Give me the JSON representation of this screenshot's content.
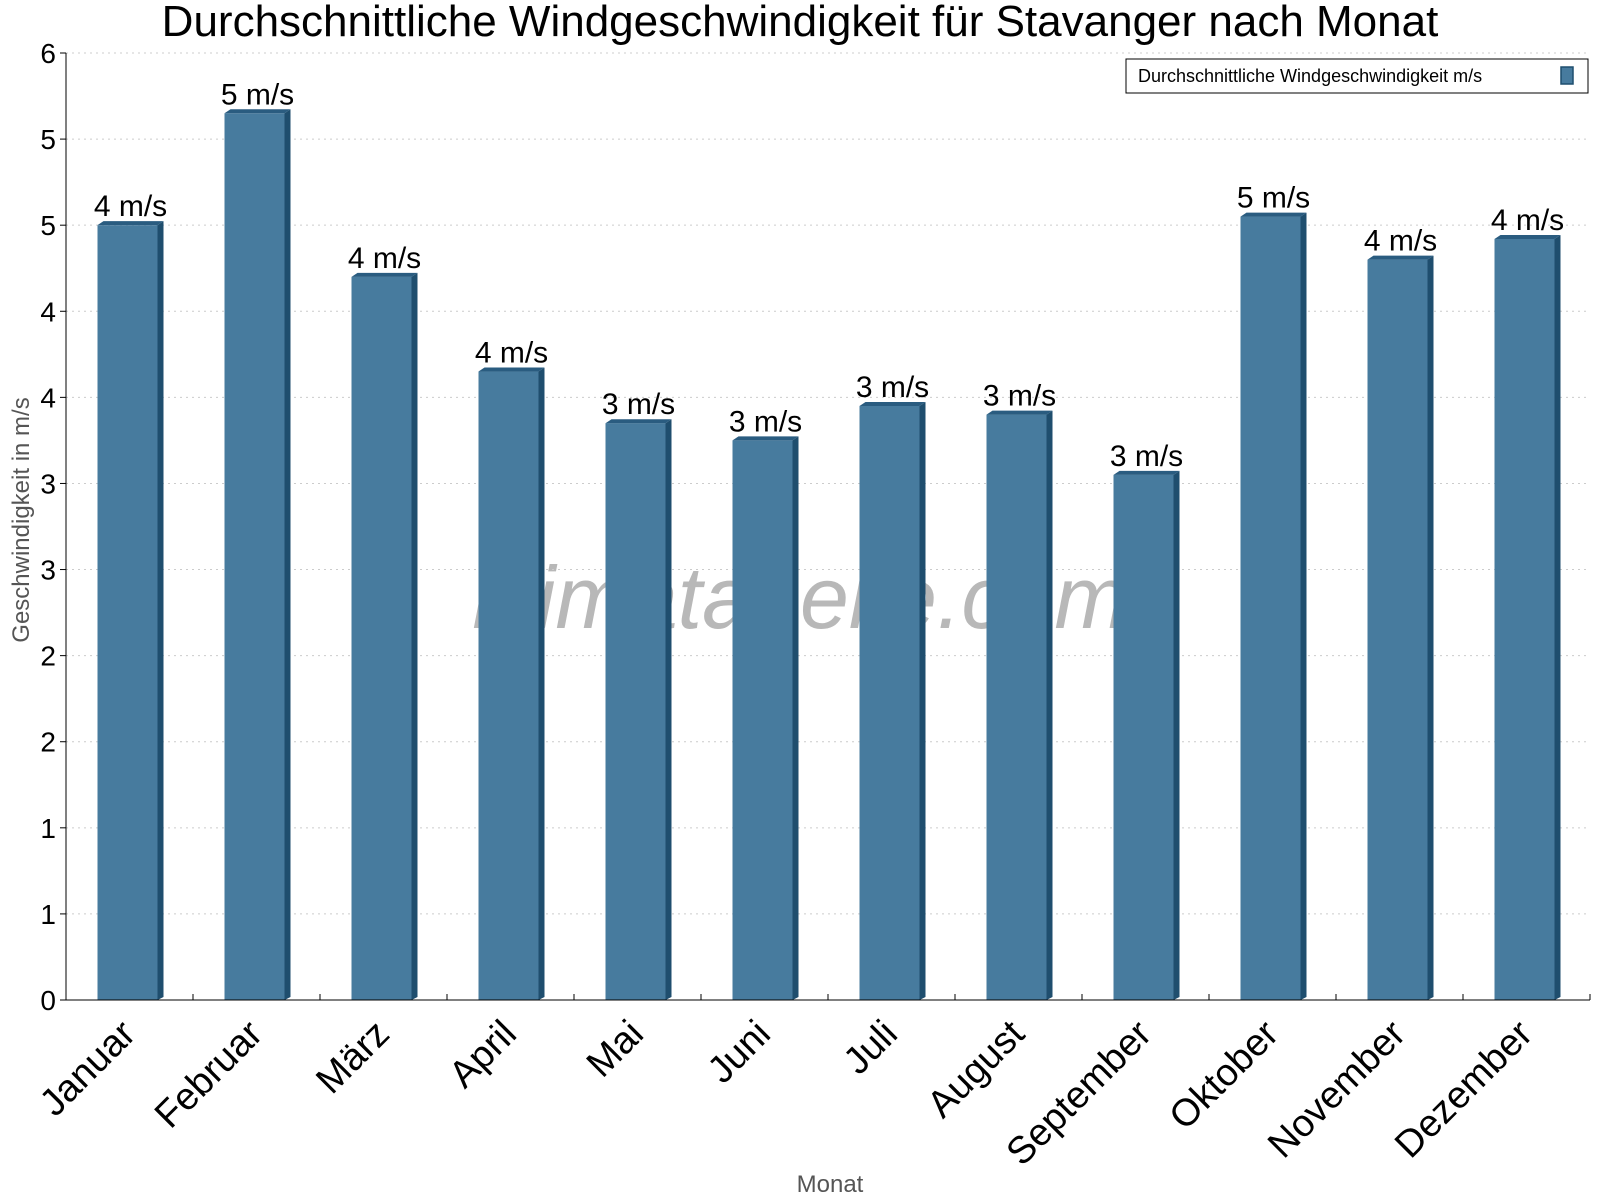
{
  "chart_data": {
    "type": "bar",
    "title": "Durchschnittliche Windgeschwindigkeit für Stavanger nach Monat",
    "xlabel": "Monat",
    "ylabel": "Geschwindigkeit in m/s",
    "categories": [
      "Januar",
      "Februar",
      "März",
      "April",
      "Mai",
      "Juni",
      "Juli",
      "August",
      "September",
      "Oktober",
      "November",
      "Dezember"
    ],
    "series": [
      {
        "name": "Durchschnittliche Windgeschwindigkeit m/s",
        "values": [
          4.5,
          5.15,
          4.2,
          3.65,
          3.35,
          3.25,
          3.45,
          3.4,
          3.05,
          4.55,
          4.3,
          4.42
        ],
        "labels": [
          "4 m/s",
          "5 m/s",
          "4 m/s",
          "4 m/s",
          "3 m/s",
          "3 m/s",
          "3 m/s",
          "3 m/s",
          "3 m/s",
          "5 m/s",
          "4 m/s",
          "4 m/s"
        ]
      }
    ],
    "ylim": [
      0,
      5.5
    ],
    "y_ticks": [
      0,
      0.5,
      1,
      1.5,
      2,
      2.5,
      3,
      3.5,
      4,
      4.5,
      5,
      5.5
    ],
    "y_tick_labels": [
      "0",
      "1",
      "1",
      "2",
      "2",
      "3",
      "3",
      "4",
      "4",
      "5",
      "5",
      "6"
    ],
    "grid": true,
    "legend_position": "top-right",
    "watermark": "klimatabelle.com",
    "colors": {
      "bar": "#477b9e",
      "bar_side": "#1f4e6e",
      "bar_top": "#2a5c80",
      "grid": "#cccccc"
    }
  }
}
